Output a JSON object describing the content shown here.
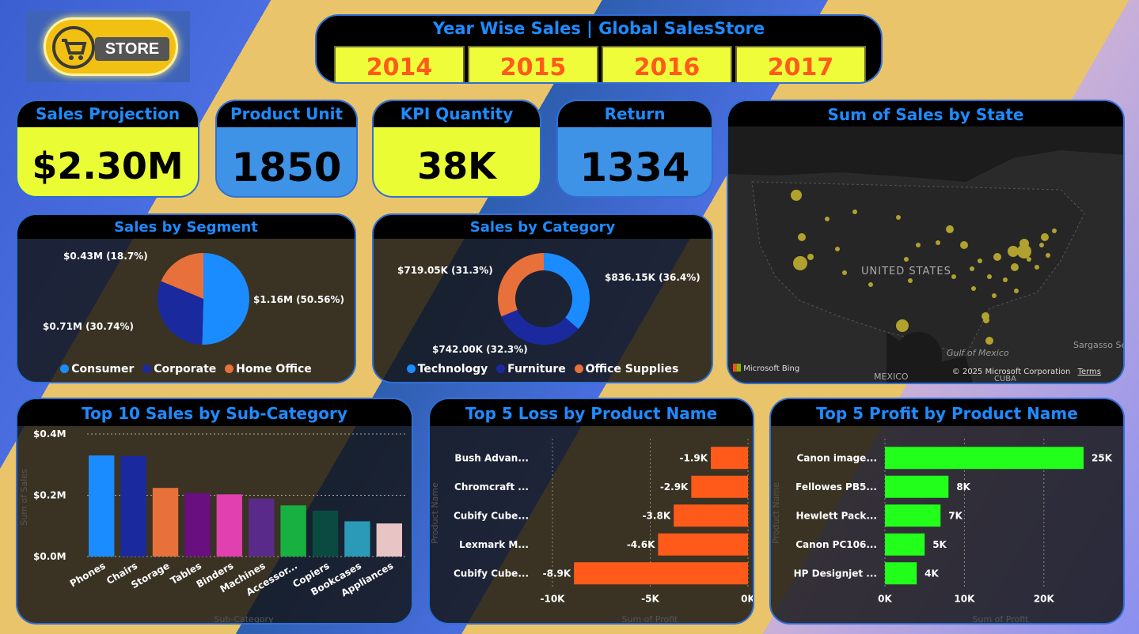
{
  "logo": {
    "text": "STORE"
  },
  "years": {
    "title": "Year Wise Sales | Global SalesStore",
    "items": [
      "2014",
      "2015",
      "2016",
      "2017"
    ]
  },
  "kpis": [
    {
      "title": "Sales Projection",
      "value": "$2.30M"
    },
    {
      "title": "Product Unit",
      "value": "1850"
    },
    {
      "title": "KPI Quantity",
      "value": "38K"
    },
    {
      "title": "Return",
      "value": "1334"
    }
  ],
  "map": {
    "title": "Sum of Sales by State",
    "labels": {
      "usa": "UNITED STATES",
      "mexico": "MEXICO",
      "gulf": "Gulf of Mexico",
      "cuba": "CUBA",
      "sargasso": "Sargasso Se"
    },
    "attribution": "Microsoft Bing",
    "copyright": "© 2025 Microsoft Corporation",
    "terms": "Terms"
  },
  "segment": {
    "title": "Sales by Segment",
    "labels": [
      "$1.16M (50.56%)",
      "$0.71M (30.74%)",
      "$0.43M (18.7%)"
    ],
    "legend": [
      "Consumer",
      "Corporate",
      "Home Office"
    ]
  },
  "category": {
    "title": "Sales by Category",
    "labels": [
      "$836.15K (36.4%)",
      "$742.00K (32.3%)",
      "$719.05K (31.3%)"
    ],
    "legend": [
      "Technology",
      "Furniture",
      "Office Supplies"
    ]
  },
  "subcat": {
    "title": "Top 10 Sales by Sub-Category",
    "yticks": [
      "$0.4M",
      "$0.2M",
      "$0.0M"
    ],
    "ylabel": "Sum of Sales",
    "xlabel": "Sub-Category"
  },
  "loss": {
    "title": "Top 5 Loss by Product Name",
    "ylabel": "Product Name",
    "xlabel": "Sum of Profit",
    "xticks": [
      "-10K",
      "-5K",
      "0K"
    ],
    "value_labels": [
      "-1.9K",
      "-2.9K",
      "-3.8K",
      "-4.6K",
      "-8.9K"
    ]
  },
  "profit": {
    "title": "Top 5 Profit by Product Name",
    "ylabel": "Product Name",
    "xlabel": "Sum of Profit",
    "xticks": [
      "0K",
      "10K",
      "20K"
    ],
    "value_labels": [
      "25K",
      "8K",
      "7K",
      "5K",
      "4K"
    ]
  },
  "colors": {
    "title_blue": "#1e8bff",
    "yellow": "#eafc34",
    "orange": "#ff5a1a",
    "green": "#22ff1a",
    "consumer": "#1a8cff",
    "corporate": "#1a2a9e",
    "home_office": "#e8703a"
  },
  "chart_data": [
    {
      "type": "pie",
      "title": "Sales by Segment",
      "categories": [
        "Consumer",
        "Corporate",
        "Home Office"
      ],
      "values": [
        1.16,
        0.71,
        0.43
      ],
      "percent": [
        50.56,
        30.74,
        18.7
      ]
    },
    {
      "type": "pie",
      "title": "Sales by Category",
      "categories": [
        "Technology",
        "Furniture",
        "Office Supplies"
      ],
      "values": [
        836.15,
        742.0,
        719.05
      ],
      "percent": [
        36.4,
        32.3,
        31.3
      ]
    },
    {
      "type": "bar",
      "title": "Top 10 Sales by Sub-Category",
      "categories": [
        "Phones",
        "Chairs",
        "Storage",
        "Tables",
        "Binders",
        "Machines",
        "Accessor...",
        "Copiers",
        "Bookcases",
        "Appliances"
      ],
      "values": [
        0.33,
        0.328,
        0.224,
        0.207,
        0.203,
        0.189,
        0.167,
        0.15,
        0.115,
        0.108
      ],
      "colors": [
        "#1a8cff",
        "#1a2a9e",
        "#e8703a",
        "#6a0f80",
        "#e040b0",
        "#5a2a8a",
        "#18b040",
        "#0a4a40",
        "#2a9ab8",
        "#e8c4c4"
      ],
      "xlabel": "Sub-Category",
      "ylabel": "Sum of Sales",
      "ylim": [
        0,
        0.4
      ]
    },
    {
      "type": "bar",
      "title": "Top 5 Loss by Product Name",
      "categories": [
        "Bush Advan...",
        "Chromcraft ...",
        "Cubify Cube...",
        "Lexmark M...",
        "Cubify Cube..."
      ],
      "values": [
        -1.9,
        -2.9,
        -3.8,
        -4.6,
        -8.9
      ],
      "xlabel": "Sum of Profit",
      "ylabel": "Product Name",
      "xlim": [
        -10,
        0
      ]
    },
    {
      "type": "bar",
      "title": "Top 5 Profit by Product Name",
      "categories": [
        "Canon image...",
        "Fellowes PB5...",
        "Hewlett Pack...",
        "Canon PC106...",
        "HP Designjet ..."
      ],
      "values": [
        25,
        8,
        7,
        5,
        4
      ],
      "xlabel": "Sum of Profit",
      "ylabel": "Product Name",
      "xlim": [
        0,
        25
      ]
    }
  ]
}
